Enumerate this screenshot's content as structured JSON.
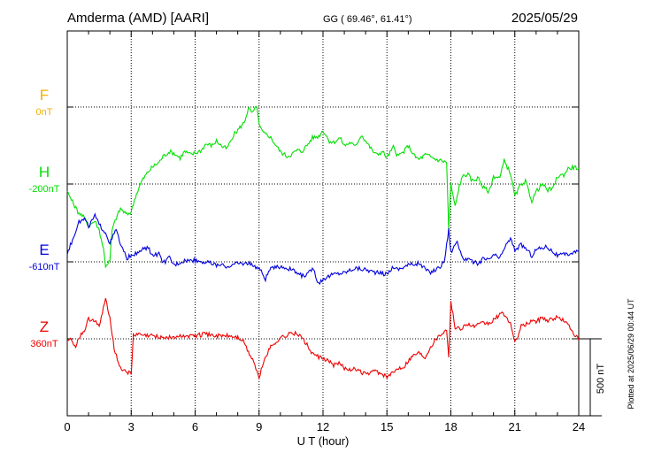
{
  "header": {
    "station": "Amderma (AMD)  [AARI]",
    "coords": "GG ( 69.46°,  61.41°)",
    "date": "2025/05/29"
  },
  "footer": {
    "plotted": "Plotted at 2025/06/29 00:44 UT"
  },
  "chart_data": {
    "type": "line",
    "xlabel": "U T (hour)",
    "xlim": [
      0,
      24
    ],
    "xticks": [
      "0",
      "3",
      "6",
      "9",
      "12",
      "15",
      "18",
      "21",
      "24"
    ],
    "grid": true,
    "scale_bar_label": "500 nT",
    "colors": {
      "F": "#f0b000",
      "H": "#00e000",
      "E": "#0000dd",
      "Z": "#ee0000"
    },
    "series": [
      {
        "name": "F",
        "baseline": "0nT",
        "values": [],
        "x": [],
        "y": []
      },
      {
        "name": "H",
        "baseline": "-200nT",
        "x": [
          0,
          0.3,
          0.5,
          0.8,
          1.0,
          1.3,
          1.5,
          1.7,
          1.8,
          2.0,
          2.1,
          2.3,
          2.5,
          2.8,
          3.0,
          3.2,
          3.5,
          3.8,
          4.0,
          4.3,
          4.5,
          4.8,
          5.0,
          5.3,
          5.5,
          5.8,
          6.0,
          6.3,
          6.5,
          6.8,
          7.0,
          7.3,
          7.5,
          7.8,
          8.0,
          8.3,
          8.5,
          8.7,
          8.9,
          9.0,
          9.2,
          9.5,
          9.8,
          10.0,
          10.3,
          10.5,
          10.8,
          11.0,
          11.3,
          11.5,
          11.8,
          12.0,
          12.3,
          12.5,
          12.8,
          13.0,
          13.3,
          13.5,
          13.8,
          14.0,
          14.3,
          14.5,
          14.8,
          15.0,
          15.3,
          15.5,
          15.8,
          16.0,
          16.3,
          16.5,
          16.8,
          17.0,
          17.3,
          17.6,
          17.8,
          17.9,
          18.0,
          18.2,
          18.4,
          18.6,
          18.8,
          19.0,
          19.3,
          19.5,
          19.8,
          20.0,
          20.3,
          20.5,
          20.8,
          21.0,
          21.3,
          21.5,
          21.8,
          22.0,
          22.3,
          22.5,
          22.8,
          23.0,
          23.3,
          23.5,
          23.8,
          24.0
        ],
        "y": [
          -250,
          -330,
          -380,
          -420,
          -470,
          -440,
          -500,
          -620,
          -730,
          -700,
          -500,
          -420,
          -360,
          -400,
          -380,
          -280,
          -180,
          -120,
          -90,
          -60,
          -20,
          10,
          0,
          -30,
          10,
          -10,
          0,
          20,
          60,
          50,
          80,
          40,
          30,
          120,
          150,
          200,
          290,
          260,
          310,
          180,
          130,
          110,
          50,
          10,
          -20,
          -10,
          20,
          10,
          60,
          100,
          110,
          150,
          80,
          70,
          100,
          50,
          70,
          40,
          120,
          80,
          20,
          -10,
          10,
          -30,
          40,
          -20,
          10,
          50,
          -20,
          -40,
          -10,
          -20,
          -40,
          -50,
          -60,
          -500,
          -200,
          -350,
          -210,
          -140,
          -140,
          -180,
          -160,
          -220,
          -250,
          -150,
          -160,
          -50,
          -130,
          -280,
          -200,
          -180,
          -310,
          -250,
          -200,
          -240,
          -230,
          -150,
          -140,
          -100,
          -90,
          -100
        ]
      },
      {
        "name": "E",
        "baseline": "-610nT",
        "x": [
          0,
          0.3,
          0.5,
          0.8,
          1.0,
          1.3,
          1.5,
          1.8,
          2.0,
          2.3,
          2.5,
          2.8,
          3.0,
          3.3,
          3.5,
          3.8,
          4.0,
          4.3,
          4.5,
          4.8,
          5.0,
          5.5,
          6.0,
          6.5,
          7.0,
          7.5,
          8.0,
          8.5,
          9.0,
          9.3,
          9.5,
          10.0,
          10.5,
          11.0,
          11.3,
          11.5,
          11.8,
          12.0,
          12.5,
          13.0,
          13.5,
          14.0,
          14.5,
          15.0,
          15.3,
          15.5,
          16.0,
          16.5,
          17.0,
          17.3,
          17.5,
          17.7,
          17.9,
          18.0,
          18.3,
          18.5,
          19.0,
          19.3,
          19.5,
          19.8,
          20.0,
          20.3,
          20.5,
          20.8,
          21.0,
          21.3,
          21.5,
          21.8,
          22.0,
          22.5,
          23.0,
          23.5,
          24.0
        ],
        "y": [
          -550,
          -450,
          -360,
          -330,
          -380,
          -310,
          -370,
          -420,
          -490,
          -400,
          -500,
          -590,
          -560,
          -560,
          -530,
          -520,
          -570,
          -560,
          -620,
          -580,
          -630,
          -600,
          -600,
          -610,
          -630,
          -640,
          -620,
          -620,
          -650,
          -720,
          -660,
          -640,
          -660,
          -700,
          -690,
          -650,
          -750,
          -720,
          -690,
          -680,
          -650,
          -660,
          -680,
          -690,
          -640,
          -660,
          -630,
          -620,
          -680,
          -660,
          -640,
          -600,
          -400,
          -550,
          -470,
          -580,
          -610,
          -620,
          -590,
          -600,
          -560,
          -590,
          -520,
          -460,
          -530,
          -500,
          -520,
          -570,
          -530,
          -510,
          -570,
          -560,
          -540
        ]
      },
      {
        "name": "Z",
        "baseline": "360nT",
        "x": [
          0,
          0.2,
          0.4,
          0.6,
          0.8,
          1.0,
          1.3,
          1.5,
          1.7,
          1.8,
          2.0,
          2.2,
          2.4,
          2.6,
          2.8,
          3.0,
          3.1,
          3.3,
          3.6,
          4.0,
          4.5,
          5.0,
          5.5,
          6.0,
          6.5,
          7.0,
          7.5,
          8.0,
          8.3,
          8.5,
          8.7,
          8.9,
          9.0,
          9.2,
          9.5,
          9.8,
          10.0,
          10.3,
          10.5,
          10.8,
          11.0,
          11.3,
          11.5,
          11.8,
          12.0,
          12.3,
          12.5,
          12.8,
          13.0,
          13.5,
          14.0,
          14.5,
          15.0,
          15.3,
          15.5,
          15.8,
          16.0,
          16.3,
          16.5,
          16.8,
          17.0,
          17.3,
          17.6,
          17.8,
          17.9,
          18.0,
          18.2,
          18.5,
          18.8,
          19.0,
          19.3,
          19.5,
          19.8,
          20.0,
          20.3,
          20.5,
          20.8,
          21.0,
          21.3,
          21.5,
          21.8,
          22.0,
          22.3,
          22.5,
          22.8,
          23.0,
          23.3,
          23.5,
          23.8,
          24.0
        ],
        "y": [
          360,
          350,
          310,
          380,
          410,
          490,
          480,
          430,
          560,
          620,
          500,
          300,
          200,
          160,
          150,
          130,
          380,
          390,
          380,
          380,
          370,
          370,
          380,
          380,
          390,
          380,
          380,
          370,
          340,
          270,
          230,
          150,
          100,
          210,
          300,
          340,
          370,
          380,
          400,
          390,
          370,
          310,
          260,
          240,
          230,
          210,
          190,
          200,
          170,
          160,
          130,
          150,
          110,
          140,
          170,
          180,
          220,
          260,
          270,
          240,
          300,
          360,
          400,
          420,
          250,
          600,
          430,
          430,
          460,
          440,
          450,
          460,
          460,
          480,
          520,
          520,
          460,
          330,
          440,
          450,
          480,
          470,
          500,
          480,
          490,
          500,
          480,
          450,
          390,
          350
        ]
      }
    ]
  }
}
